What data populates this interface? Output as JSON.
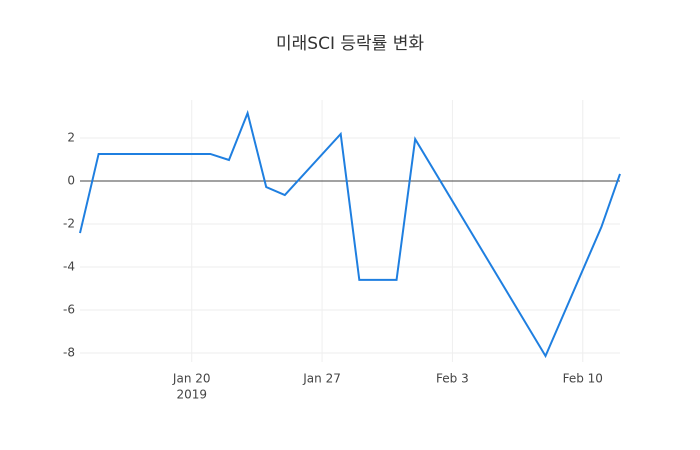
{
  "chart_data": {
    "type": "line",
    "title": "미래SCI 등락률 변화",
    "x": [
      "2019-01-14",
      "2019-01-15",
      "2019-01-21",
      "2019-01-22",
      "2019-01-23",
      "2019-01-24",
      "2019-01-25",
      "2019-01-28",
      "2019-01-29",
      "2019-01-31",
      "2019-02-01",
      "2019-02-08",
      "2019-02-11",
      "2019-02-12"
    ],
    "series": [
      {
        "name": "등락률",
        "color": "#1f7fe0",
        "values": [
          -2.42,
          1.26,
          1.26,
          0.98,
          3.16,
          -0.28,
          -0.65,
          2.19,
          -4.6,
          -4.6,
          1.95,
          -8.14,
          -2.14,
          0.33
        ]
      }
    ],
    "xlim": [
      "2019-01-14",
      "2019-02-12"
    ],
    "xticks": [
      {
        "value": "2019-01-20",
        "label": "Jan 20"
      },
      {
        "value": "2019-01-27",
        "label": "Jan 27"
      },
      {
        "value": "2019-02-03",
        "label": "Feb 3"
      },
      {
        "value": "2019-02-10",
        "label": "Feb 10"
      }
    ],
    "xtick_year": "2019",
    "ylim": [
      -8.42,
      3.77
    ],
    "yticks": [
      -8,
      -6,
      -4,
      -2,
      0,
      2
    ],
    "grid": true,
    "zeroline": true
  }
}
